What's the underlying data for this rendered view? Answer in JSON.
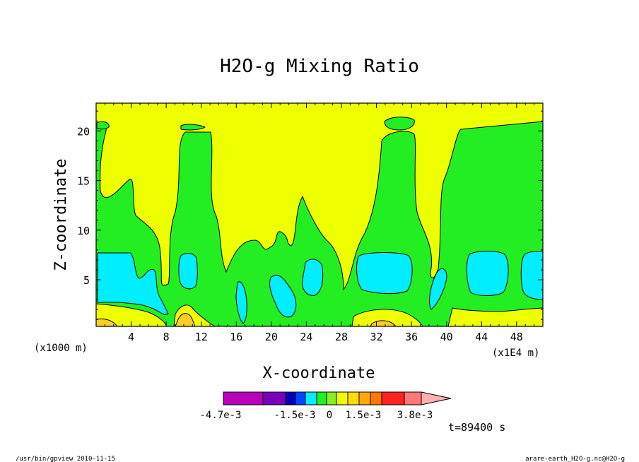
{
  "chart_data": {
    "type": "heatmap",
    "title": "H2O-g Mixing Ratio",
    "xlabel": "X-coordinate",
    "ylabel": "Z-coordinate",
    "x_unit_left": "(x1000 m)",
    "x_unit_right": "(x1E4 m)",
    "xlim": [
      0,
      51
    ],
    "ylim": [
      0.3,
      22.8
    ],
    "x_ticks": [
      "4",
      "8",
      "12",
      "16",
      "20",
      "24",
      "28",
      "32",
      "36",
      "40",
      "44",
      "48"
    ],
    "x_tick_values": [
      4,
      8,
      12,
      16,
      20,
      24,
      28,
      32,
      36,
      40,
      44,
      48
    ],
    "y_ticks": [
      "5",
      "10",
      "15",
      "20"
    ],
    "y_tick_values": [
      5,
      10,
      15,
      20
    ],
    "field_colors": {
      "background": "#eeff00",
      "green": "#22ee22",
      "cyan": "#00eeff",
      "orange_yellow": "#ffcc22",
      "light_orange": "#ff9922",
      "red": "#ff2222",
      "pink": "#ffb0b0"
    },
    "colorbar": {
      "colors": [
        "#bb00bb",
        "#7700bb",
        "#0000bb",
        "#0044ff",
        "#00eeff",
        "#22ee22",
        "#88ee22",
        "#eeff00",
        "#ffdd00",
        "#ffaa00",
        "#ff7700",
        "#ff2222",
        "#ff7777",
        "#ffb0b0"
      ],
      "labels": [
        "-4.7e-3",
        "-1.5e-3",
        "0",
        "1.5e-3",
        "3.8e-3"
      ]
    },
    "time_label": "t=89400 s"
  },
  "footer": {
    "left": "/usr/bin/gpview  2010-11-15",
    "right": "arare-earth_H2O-g.nc@H2O-g"
  }
}
